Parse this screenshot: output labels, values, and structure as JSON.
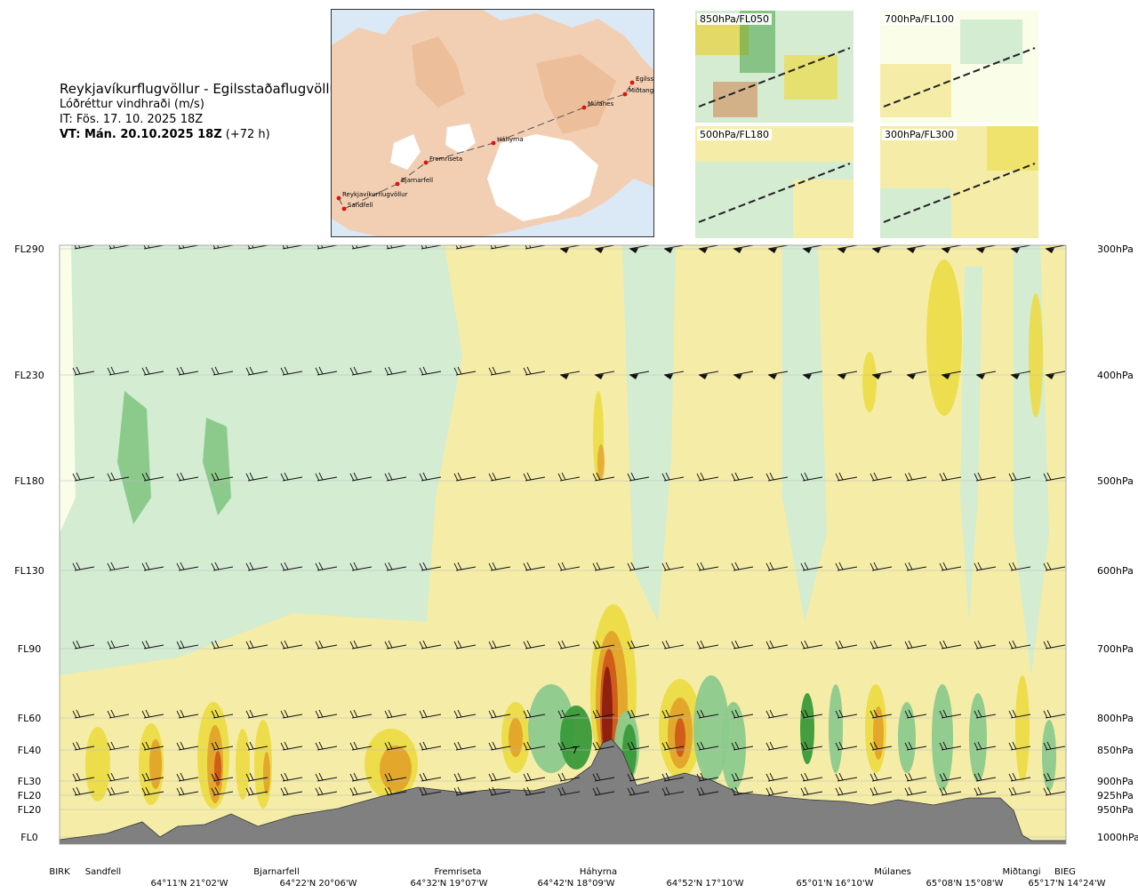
{
  "header": {
    "title": "Reykjavíkurflugvöllur - Egilsstaðaflugvöllur",
    "subtitle": "Lóðréttur vindhraði (m/s)",
    "issue_time": "IT: Fös. 17. 10. 2025 18Z",
    "valid_time_bold": "VT: Mán. 20.10.2025 18Z",
    "valid_time_offset": "(+72 h)"
  },
  "route_map": {
    "points": [
      {
        "name": "Reykjavíkurflugvöllur"
      },
      {
        "name": "Sandfell"
      },
      {
        "name": "Bjarnarfell"
      },
      {
        "name": "Fremriseta"
      },
      {
        "name": "Háhyrna"
      },
      {
        "name": "Múlanes"
      },
      {
        "name": "Miðtangi"
      },
      {
        "name": "Egilsstaðir"
      }
    ],
    "colors": {
      "land": "#f2cfb3",
      "sea": "#dbe9f6",
      "glacier": "#ffffff",
      "route_point": "#e01010"
    }
  },
  "thumbnails": [
    {
      "label": "850hPa/FL050"
    },
    {
      "label": "700hPa/FL100"
    },
    {
      "label": "500hPa/FL180"
    },
    {
      "label": "300hPa/FL300"
    }
  ],
  "chart_data": {
    "type": "cross-section",
    "title": "Lóðréttur vindhraði (m/s)",
    "left_axis_levels": [
      "FL290",
      "FL230",
      "FL180",
      "FL130",
      "FL90",
      "FL60",
      "FL40",
      "FL30",
      "FL20",
      "FL20",
      "FL0"
    ],
    "right_axis_levels": [
      "300hPa",
      "400hPa",
      "500hPa",
      "600hPa",
      "700hPa",
      "800hPa",
      "850hPa",
      "900hPa",
      "925hPa",
      "950hPa",
      "1000hPa"
    ],
    "pressure_hpa": [
      300,
      400,
      500,
      600,
      700,
      800,
      850,
      900,
      925,
      950,
      1000
    ],
    "stations": [
      "BIRK",
      "Sandfell",
      "Bjarnarfell",
      "Fremriseta",
      "Háhyrna",
      "Múlanes",
      "Miðtangi",
      "BIEG"
    ],
    "coordinates": [
      "64°11'N 21°02'W",
      "64°22'N 20°06'W",
      "64°32'N 19°07'W",
      "64°42'N 18°09'W",
      "64°52'N 17°10'W",
      "65°01'N 16°10'W",
      "65°08'N 15°08'W",
      "65°17'N 14°24'W"
    ],
    "field_colors": {
      "strong_down": "#3a9a3a",
      "moderate_down": "#8cca8c",
      "weak_down": "#d3ecd2",
      "near_zero": "#fafde8",
      "weak_up": "#f5eda7",
      "moderate_up": "#ecdc46",
      "strong_up": "#e3a32a",
      "very_strong_up": "#cf5a1a",
      "extreme_up": "#8c1c10",
      "terrain": "#808080"
    },
    "max_marker": "7"
  }
}
